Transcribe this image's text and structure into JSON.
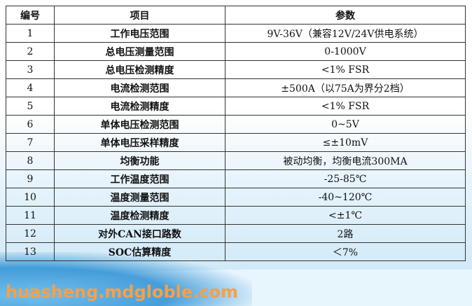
{
  "table": {
    "headers": [
      "编号",
      "项目",
      "参数"
    ],
    "rows": [
      [
        "1",
        "工作电压范围",
        "9V-36V（兼容12V/24V供电系统）"
      ],
      [
        "2",
        "总电压测量范围",
        "0-1000V"
      ],
      [
        "3",
        "总电压检测精度",
        "<1% FSR"
      ],
      [
        "4",
        "电流检测范围",
        "±500A（以75A为界分2档）"
      ],
      [
        "5",
        "电流检测精度",
        "<1% FSR"
      ],
      [
        "6",
        "单体电压检测范围",
        "0~5V"
      ],
      [
        "7",
        "单体电压采样精度",
        "≤±10mV"
      ],
      [
        "8",
        "均衡功能",
        "被动均衡，均衡电流300MA"
      ],
      [
        "9",
        "工作温度范围",
        "-25-85℃"
      ],
      [
        "10",
        "温度测量范围",
        "-40~120℃"
      ],
      [
        "11",
        "温度检测精度",
        "<±1℃"
      ],
      [
        "12",
        "对外CAN接口路数",
        "2路"
      ],
      [
        "13",
        "SOC估算精度",
        "＜7%"
      ]
    ]
  },
  "watermark": "huasheng.mdgloble.com"
}
